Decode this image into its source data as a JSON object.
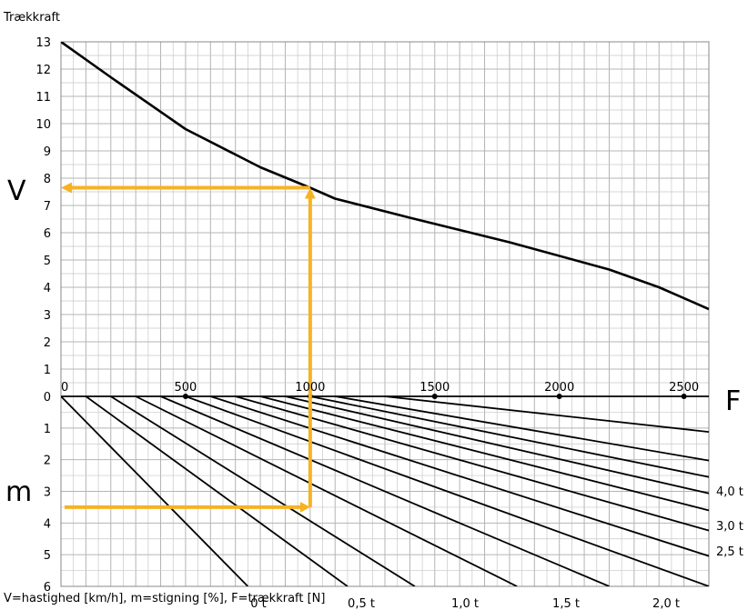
{
  "chart_data": {
    "type": "line",
    "title": "Trækkraft",
    "footer": "V=hastighed [km/h], m=stigning [%], F=trækkraft [N]",
    "upper_axis_label": "V",
    "lower_axis_label": "m",
    "x_axis_label": "F",
    "x_ticks": [
      "0",
      "500",
      "1000",
      "1500",
      "2000",
      "2500"
    ],
    "x_range": [
      0,
      2600
    ],
    "v_ticks": [
      "13",
      "12",
      "11",
      "10",
      "9",
      "8",
      "7",
      "6",
      "5",
      "4",
      "3",
      "2",
      "1",
      "0"
    ],
    "v_range": [
      0,
      13
    ],
    "m_ticks": [
      "1",
      "2",
      "3",
      "4",
      "5",
      "6"
    ],
    "m_range": [
      0,
      6
    ],
    "speed_curve": {
      "x": [
        0,
        200,
        500,
        800,
        1000,
        1100,
        1400,
        1800,
        2200,
        2400,
        2600
      ],
      "y": [
        13,
        11.7,
        9.8,
        8.4,
        7.65,
        7.25,
        6.55,
        5.65,
        4.65,
        4.0,
        3.2
      ]
    },
    "load_lines": [
      {
        "mass": "",
        "f_at_0": 0,
        "f_at_6": 750
      },
      {
        "mass": "",
        "f_at_0": 100,
        "f_at_6": 1150
      },
      {
        "mass": "0 t",
        "f_at_0": 200,
        "f_at_6": 1420
      },
      {
        "mass": "",
        "f_at_0": 300,
        "f_at_6": 1830
      },
      {
        "mass": "0,5 t",
        "f_at_0": 400,
        "f_at_6": 2200
      },
      {
        "mass": "",
        "f_at_0": 500,
        "f_at_6": 2600
      },
      {
        "mass": "1,0 t",
        "f_at_0": 600,
        "f_at_6": 2980
      },
      {
        "mass": "",
        "f_at_0": 700,
        "f_at_6": 3390
      },
      {
        "mass": "1,5 t",
        "f_at_0": 800,
        "f_at_6": 3800
      },
      {
        "mass": "2,0 t",
        "f_at_0": 900,
        "f_at_6": 4230
      },
      {
        "mass": "2,5 t",
        "f_at_0": 1000,
        "f_at_6": 4770
      },
      {
        "mass": "3,0 t",
        "f_at_0": 1100,
        "f_at_6": 5540
      },
      {
        "mass": "4,0 t",
        "f_at_0": 1300,
        "f_at_6": 8250
      }
    ],
    "bottom_mass_labels": [
      "0 t",
      "0,5 t",
      "1,0 t",
      "1,5 t",
      "2,0 t"
    ],
    "right_mass_labels": [
      "4,0 t",
      "3,0 t",
      "2,5 t"
    ],
    "example": {
      "F": 1000,
      "m": 3.5,
      "V": 7.65
    },
    "colors": {
      "curve": "#000000",
      "example": "#f5b324",
      "grid": "#c8c8c8",
      "grid_major": "#b4b4b4"
    }
  }
}
